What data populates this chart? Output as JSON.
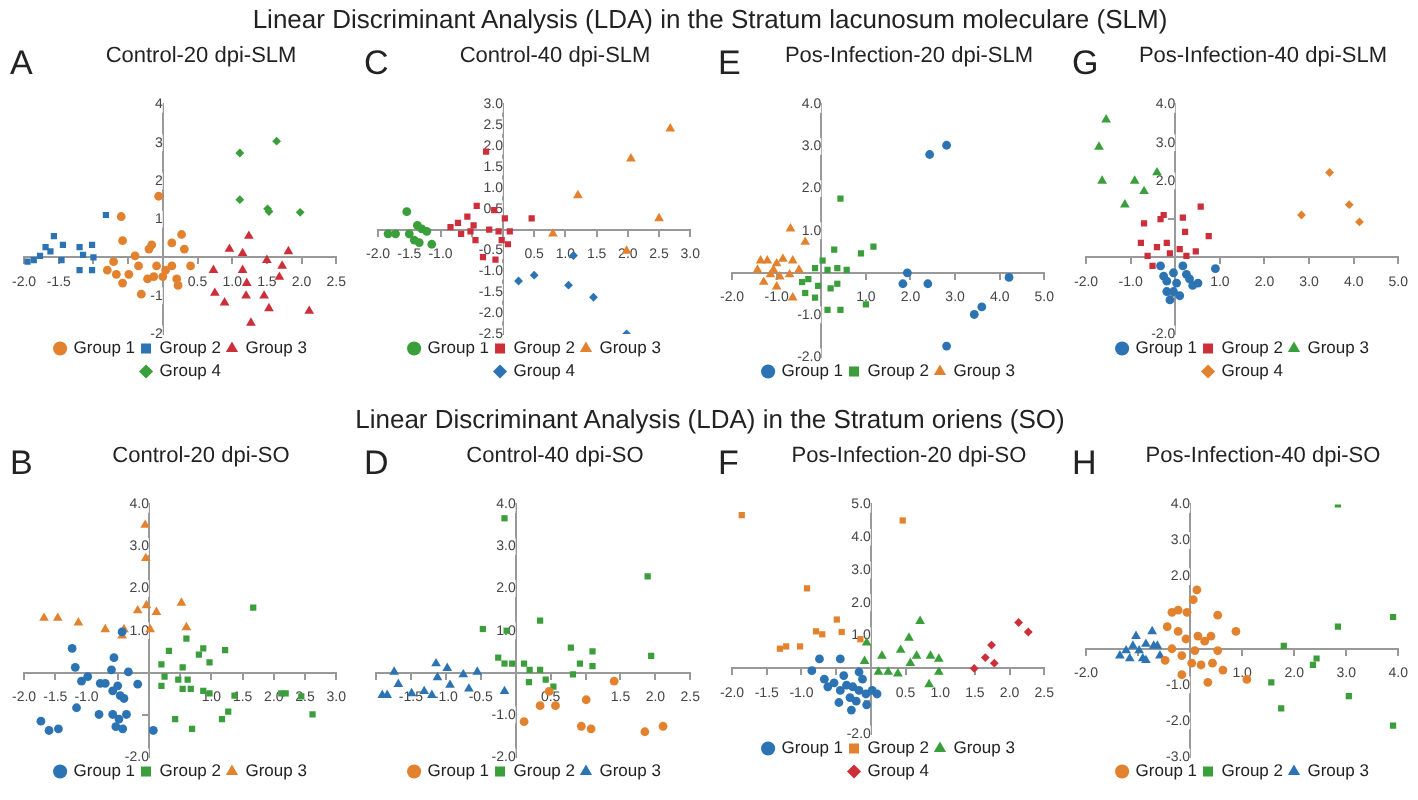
{
  "chart_data": [
    {
      "type": "scatter",
      "title": "Control-20 dpi-SLM",
      "annotations": [
        "Linear Discriminant Analysis (LDA) in the Stratum lacunosum moleculare (SLM)",
        "A"
      ],
      "legend": "bottom",
      "xlim": [
        -2,
        2.5
      ],
      "ylim": [
        -2,
        4
      ],
      "xticks": [
        {
          "value": -2,
          "label": "-2.0"
        },
        -1.5,
        {
          "value": -1,
          "label": null
        },
        {
          "value": -0.5,
          "label": null
        },
        0.5,
        {
          "value": 1,
          "label": "1.0"
        },
        1.5,
        {
          "value": 2,
          "label": "2.0"
        },
        2.5
      ],
      "yticks": [
        -2,
        -1,
        1,
        2,
        3,
        4
      ],
      "series": [
        {
          "name": "Group 1",
          "color": "#e2822f",
          "marker": "circle",
          "x": [
            -0.06,
            -0.6,
            -0.58,
            -0.16,
            -0.2,
            -0.4,
            0.27,
            0.13,
            0.31,
            0.4,
            -0.71,
            -0.8,
            -0.67,
            -0.58,
            -0.31,
            -0.22,
            -0.09,
            0.04,
            0.2,
            0.22,
            0.13,
            -0.35,
            -0.49,
            0.0,
            -0.13
          ],
          "values": [
            1.6,
            1.07,
            0.44,
            0.33,
            0.22,
            0.04,
            0.6,
            0.38,
            0.22,
            -0.22,
            -0.11,
            -0.33,
            -0.44,
            -0.67,
            -0.96,
            -0.56,
            -0.22,
            -0.33,
            -0.56,
            -0.73,
            -0.22,
            -0.22,
            -0.44,
            -0.5,
            -0.5
          ]
        },
        {
          "name": "Group 2",
          "color": "#2b73b3",
          "marker": "square",
          "x": [
            -0.82,
            -1.86,
            -1.77,
            -1.69,
            -1.57,
            -1.44,
            -1.2,
            -1.15,
            -1.02,
            -1.0,
            -1.02,
            -1.2,
            -1.46,
            -1.62,
            -1.95
          ],
          "values": [
            1.11,
            -0.07,
            0.04,
            0.27,
            0.56,
            0.33,
            0.27,
            0.07,
            0.33,
            0,
            -0.33,
            -0.33,
            -0.07,
            0.16,
            -0.11
          ]
        },
        {
          "name": "Group 3",
          "color": "#cc2f3a",
          "marker": "triangle",
          "x": [
            0.96,
            1.24,
            1.5,
            1.81,
            1.72,
            1.68,
            1.15,
            0.73,
            0.75,
            0.89,
            1.2,
            1.21,
            1.27,
            1.46,
            1.53,
            2.11,
            1.15
          ],
          "values": [
            0.22,
            0.56,
            -0.07,
            0.16,
            -0.22,
            -0.51,
            -0.33,
            -0.33,
            -0.93,
            -1.18,
            -1.0,
            -0.67,
            -1.71,
            -1.0,
            -1.33,
            -1.4,
            0.11
          ]
        },
        {
          "name": "Group 4",
          "color": "#3a9e3a",
          "marker": "diamond",
          "x": [
            1.11,
            1.64,
            1.11,
            1.51,
            1.53,
            1.98
          ],
          "values": [
            2.73,
            3.04,
            1.51,
            1.27,
            1.2,
            1.18
          ]
        }
      ]
    },
    {
      "type": "scatter",
      "title": "Control-40 dpi-SLM",
      "annotations": [
        "C"
      ],
      "legend": "bottom",
      "xlim": [
        -2,
        3
      ],
      "ylim": [
        -2.5,
        3
      ],
      "xticks": [
        {
          "value": -2,
          "label": "-2.0"
        },
        -1.5,
        {
          "value": -1,
          "label": "-1.0"
        },
        {
          "value": -0.5,
          "label": null
        },
        0.5,
        {
          "value": 1,
          "label": "1.0"
        },
        1.5,
        {
          "value": 2,
          "label": "2.0"
        },
        2.5,
        {
          "value": 3,
          "label": "3.0"
        }
      ],
      "yticks": [
        -2.5,
        {
          "value": -2,
          "label": "-2.0"
        },
        -1.5,
        {
          "value": -1,
          "label": "-1.0"
        },
        -0.5,
        0.5,
        {
          "value": 1,
          "label": "1.0"
        },
        1.5,
        {
          "value": 2,
          "label": "2.0"
        },
        2.5,
        {
          "value": 3,
          "label": "3.0"
        }
      ],
      "series": [
        {
          "name": "Group 1",
          "color": "#3a9e3a",
          "marker": "circle",
          "x": [
            -1.84,
            -1.72,
            -1.54,
            -1.5,
            -1.37,
            -1.3,
            -1.22,
            -1.34,
            -1.14,
            -1.42
          ],
          "values": [
            -0.1,
            -0.1,
            0.43,
            -0.1,
            0.1,
            0.02,
            -0.04,
            -0.31,
            -0.35,
            -0.25
          ]
        },
        {
          "name": "Group 2",
          "color": "#cc2f3a",
          "marker": "square",
          "x": [
            -0.27,
            -0.14,
            -0.42,
            -0.57,
            -0.72,
            -0.84,
            -0.67,
            -0.52,
            -0.44,
            -0.22,
            -0.07,
            -0.02,
            0.08,
            0.11,
            0.03,
            0.46,
            -0.32,
            -0.12,
            -0.47
          ],
          "values": [
            1.87,
            0.47,
            0.57,
            0.31,
            0.16,
            0.06,
            -0.1,
            -0.04,
            -0.25,
            0,
            -0.04,
            -0.25,
            -0.35,
            -0.04,
            0.27,
            0.27,
            -0.66,
            -0.72,
            0.1
          ]
        },
        {
          "name": "Group 3",
          "color": "#e2822f",
          "marker": "triangle",
          "x": [
            2.68,
            2.05,
            1.2,
            2.5,
            0.8,
            1.98
          ],
          "values": [
            2.42,
            1.7,
            0.82,
            0.27,
            -0.1,
            -0.51
          ]
        },
        {
          "name": "Group 4",
          "color": "#2b73b3",
          "marker": "diamond",
          "x": [
            0.25,
            0.5,
            1.13,
            1.05,
            1.45,
            1.98
          ],
          "values": [
            -1.23,
            -1.09,
            -0.62,
            -1.33,
            -1.62,
            -2.5
          ]
        }
      ]
    },
    {
      "type": "scatter",
      "title": "Pos-Infection-20 dpi-SLM",
      "annotations": [
        "E"
      ],
      "legend": "bottom",
      "xlim": [
        -2,
        5
      ],
      "ylim": [
        -2,
        4
      ],
      "xticks": [
        {
          "value": -2,
          "label": "-2.0"
        },
        {
          "value": -1,
          "label": "-1.0"
        },
        {
          "value": 1,
          "label": "1.0"
        },
        {
          "value": 2,
          "label": "2.0"
        },
        {
          "value": 3,
          "label": "3.0"
        },
        {
          "value": 4,
          "label": "4.0"
        },
        {
          "value": 5,
          "label": "5.0"
        }
      ],
      "yticks": [
        {
          "value": -2,
          "label": "-2.0"
        },
        {
          "value": -1,
          "label": "-1.0"
        },
        {
          "value": 1,
          "label": "1.0"
        },
        {
          "value": 2,
          "label": "2.0"
        },
        {
          "value": 3,
          "label": "3.0"
        },
        {
          "value": 4,
          "label": "4.0"
        }
      ],
      "series": [
        {
          "name": "Group 1",
          "color": "#2b73b3",
          "marker": "circle",
          "x": [
            2.43,
            2.81,
            1.93,
            1.83,
            2.39,
            4.21,
            3.6,
            3.43,
            2.81
          ],
          "values": [
            2.81,
            3.03,
            0,
            -0.26,
            -0.26,
            -0.11,
            -0.81,
            -0.99,
            -1.74
          ]
        },
        {
          "name": "Group 2",
          "color": "#3a9e3a",
          "marker": "square",
          "x": [
            0.43,
            1.17,
            0.89,
            0.29,
            0.03,
            -0.14,
            -0.29,
            0.14,
            0.36,
            0.57,
            -0.36,
            -0.14,
            0.14,
            0.43,
            1.0,
            0.21,
            -0.07,
            -0.43,
            0.36
          ],
          "values": [
            1.76,
            0.62,
            0.46,
            0.55,
            0.29,
            0.11,
            -0.15,
            0.07,
            0.11,
            0.07,
            -0.48,
            -0.59,
            -0.88,
            -0.88,
            -0.75,
            -0.37,
            -0.31,
            -0.22,
            -0.26
          ]
        },
        {
          "name": "Group 3",
          "color": "#e2822f",
          "marker": "triangle",
          "x": [
            -0.69,
            -0.36,
            -1.36,
            -1.21,
            -1.0,
            -0.86,
            -0.64,
            -1.43,
            -1.14,
            -0.93,
            -0.71,
            -1.29,
            -1.0,
            -0.64,
            -0.5,
            -1.07
          ],
          "values": [
            1.05,
            0.73,
            0.29,
            0.29,
            0.22,
            0.33,
            0.29,
            0.07,
            -0.04,
            -0.09,
            -0.04,
            -0.22,
            -0.33,
            -0.59,
            0.07,
            0.07
          ]
        }
      ]
    },
    {
      "type": "scatter",
      "title": "Pos-Infection-40 dpi-SLM",
      "annotations": [
        "G"
      ],
      "legend": "bottom",
      "xlim": [
        -2,
        5
      ],
      "ylim": [
        -2,
        4
      ],
      "xticks": [
        {
          "value": -2,
          "label": "-2.0"
        },
        {
          "value": -1,
          "label": "-1.0"
        },
        {
          "value": 1,
          "label": "1.0"
        },
        {
          "value": 2,
          "label": "2.0"
        },
        {
          "value": 3,
          "label": "3.0"
        },
        {
          "value": 4,
          "label": "4.0"
        },
        {
          "value": 5,
          "label": "5.0"
        }
      ],
      "yticks": [
        {
          "value": -2,
          "label": "-2.0"
        },
        {
          "value": -1,
          "label": null
        },
        {
          "value": 1,
          "label": null
        },
        {
          "value": 2,
          "label": "2.0"
        },
        {
          "value": 3,
          "label": "3.0"
        },
        {
          "value": 4,
          "label": "4.0"
        }
      ],
      "series": [
        {
          "name": "Group 1",
          "color": "#2b73b3",
          "marker": "circle",
          "x": [
            0.9,
            0.39,
            0.25,
            -0.04,
            -0.26,
            -0.19,
            -0.12,
            0.1,
            0.03,
            0.17,
            -0.33,
            0.32,
            0.51,
            -0.04,
            -0.19
          ],
          "values": [
            -0.29,
            -0.73,
            -0.44,
            -0.4,
            -0.49,
            -0.89,
            -1.11,
            -1.0,
            -0.67,
            -0.22,
            -0.22,
            -0.56,
            -0.67,
            -0.89,
            -0.62
          ]
        },
        {
          "name": "Group 2",
          "color": "#cc2f3a",
          "marker": "square",
          "x": [
            0.57,
            -0.26,
            -0.33,
            -0.7,
            0.75,
            0.17,
            0.22,
            -0.19,
            -0.41,
            -0.77,
            -0.62,
            -0.51,
            -0.12,
            0.1,
            0.25,
            0.46
          ],
          "values": [
            1.33,
            1.11,
            1.0,
            0.89,
            0.56,
            1.04,
            0.67,
            0.38,
            0.27,
            0.38,
            0.04,
            -0.22,
            0.11,
            0.22,
            0.04,
            0.16
          ]
        },
        {
          "name": "Group 3",
          "color": "#3a9e3a",
          "marker": "triangle",
          "x": [
            -1.55,
            -1.71,
            -1.64,
            -0.91,
            -0.41,
            -0.7,
            -1.13
          ],
          "values": [
            3.6,
            2.89,
            2.0,
            2.0,
            2.22,
            1.73,
            1.38
          ]
        },
        {
          "name": "Group 4",
          "color": "#e2822f",
          "marker": "diamond",
          "x": [
            3.46,
            2.83,
            3.9,
            4.13
          ],
          "values": [
            2.22,
            1.11,
            1.38,
            0.93
          ]
        }
      ]
    },
    {
      "type": "scatter",
      "title": "Control-20 dpi-SO",
      "annotations": [
        "Linear Discriminant Analysis (LDA) in the Stratum oriens (SO)",
        "B"
      ],
      "legend": "bottom",
      "xlim": [
        -2,
        3
      ],
      "ylim": [
        -2,
        4
      ],
      "xticks": [
        {
          "value": -2,
          "label": "-2.0"
        },
        -1.5,
        {
          "value": -1,
          "label": "-1.0"
        },
        {
          "value": -0.5,
          "label": null
        },
        {
          "value": 0.5,
          "label": null
        },
        {
          "value": 1,
          "label": "1.0"
        },
        1.5,
        {
          "value": 2,
          "label": "2.0"
        },
        2.5,
        {
          "value": 3,
          "label": "3.0"
        }
      ],
      "yticks": [
        {
          "value": -2,
          "label": "-2.0"
        },
        {
          "value": -1,
          "label": null
        },
        {
          "value": 1,
          "label": "1.0"
        },
        {
          "value": 2,
          "label": "2.0"
        },
        {
          "value": 3,
          "label": "3.0"
        },
        {
          "value": 4,
          "label": "4.0"
        }
      ],
      "series": [
        {
          "name": "Group 1",
          "color": "#2b73b3",
          "marker": "circle",
          "x": [
            -1.23,
            -1.18,
            -1.08,
            -0.98,
            -1.16,
            -1.73,
            -1.6,
            -1.45,
            -0.8,
            -0.78,
            -0.7,
            -0.6,
            -0.56,
            -0.5,
            -0.58,
            -0.46,
            -0.58,
            -0.48,
            -0.42,
            -0.36,
            -0.33,
            -0.18,
            -0.43,
            -0.4,
            0.07,
            -0.53
          ],
          "values": [
            0.58,
            0.13,
            -0.2,
            -0.09,
            -0.83,
            -1.15,
            -1.37,
            -1.33,
            -0.99,
            -0.25,
            -0.25,
            0.07,
            0.36,
            -0.31,
            -0.43,
            -0.54,
            -0.99,
            -1.1,
            -1.33,
            -0.99,
            0.02,
            -0.27,
            0.97,
            -0.61,
            -1.37,
            -1.28
          ]
        },
        {
          "name": "Group 2",
          "color": "#3a9e3a",
          "marker": "square",
          "x": [
            0.2,
            0.25,
            0.2,
            0.32,
            0.54,
            0.6,
            0.42,
            0.69,
            0.47,
            0.62,
            0.67,
            0.8,
            0.87,
            0.97,
            0.87,
            0.97,
            1.22,
            1.17,
            1.27,
            1.37,
            1.67,
            2.12,
            2.19,
            2.44,
            2.62,
            0.54
          ],
          "values": [
            0.2,
            -0.09,
            -0.31,
            0.52,
            -0.38,
            0.81,
            -1.1,
            -1.33,
            -0.16,
            -0.16,
            -0.38,
            0.43,
            0.58,
            0.25,
            -0.43,
            -0.49,
            0.54,
            -1.1,
            -0.92,
            -0.54,
            1.55,
            -0.49,
            -0.49,
            -0.56,
            -0.99,
            0.13
          ]
        },
        {
          "name": "Group 3",
          "color": "#e2822f",
          "marker": "triangle",
          "x": [
            -0.06,
            -0.05,
            -0.04,
            -0.18,
            0.12,
            0.52,
            0.6,
            0.02,
            -1.68,
            -1.46,
            -1.13,
            -0.7,
            -0.4,
            -0.43
          ],
          "values": [
            3.51,
            2.72,
            1.6,
            1.48,
            1.44,
            1.66,
            1.08,
            1.03,
            1.3,
            1.3,
            1.19,
            1.03,
            1.03,
            0.88
          ]
        }
      ]
    },
    {
      "type": "scatter",
      "title": "Control-40 dpi-SO",
      "annotations": [
        "D"
      ],
      "legend": "bottom",
      "xlim": [
        -2,
        2.5
      ],
      "ylim": [
        -2,
        4
      ],
      "xticks": [
        {
          "value": -2,
          "label": null
        },
        -1.5,
        {
          "value": -1,
          "label": "-1.0"
        },
        -0.5,
        0.5,
        {
          "value": 1,
          "label": null
        },
        1.5,
        {
          "value": 2,
          "label": "2.0"
        },
        2.5
      ],
      "yticks": [
        {
          "value": -2,
          "label": "-2.0"
        },
        {
          "value": -1,
          "label": "-1.0"
        },
        {
          "value": 1,
          "label": "1.0"
        },
        {
          "value": 2,
          "label": "2.0"
        },
        {
          "value": 3,
          "label": "3.0"
        },
        {
          "value": 4,
          "label": "4.0"
        }
      ],
      "series": [
        {
          "name": "Group 1",
          "color": "#e2822f",
          "marker": "circle",
          "x": [
            0.48,
            0.35,
            0.57,
            0.12,
            1.01,
            0.94,
            1.08,
            1.41,
            1.85,
            2.11
          ],
          "values": [
            -0.44,
            -0.78,
            -0.78,
            -1.16,
            -0.64,
            -1.27,
            -1.33,
            -0.2,
            -1.4,
            -1.27
          ]
        },
        {
          "name": "Group 2",
          "color": "#3a9e3a",
          "marker": "square",
          "x": [
            -0.16,
            -0.13,
            -0.47,
            0.35,
            -0.25,
            -0.16,
            -0.05,
            0.12,
            0.19,
            0.35,
            0.43,
            0.79,
            0.92,
            1.1,
            0.82,
            1.1,
            1.89,
            1.94,
            0.54,
            0.2
          ],
          "values": [
            3.67,
            1.0,
            1.04,
            1.24,
            0.36,
            0.22,
            0.22,
            0.22,
            -0.22,
            0.07,
            -0.16,
            0.6,
            0.22,
            0.51,
            -0.04,
            0.16,
            2.29,
            0.4,
            -0.33,
            0.07
          ]
        },
        {
          "name": "Group 3",
          "color": "#2b73b3",
          "marker": "triangle",
          "x": [
            -1.91,
            -1.84,
            -1.74,
            -1.68,
            -1.49,
            -1.31,
            -1.2,
            -1.14,
            -1.12,
            -0.98,
            -0.94,
            -0.75,
            -0.67,
            -0.55,
            -0.16
          ],
          "values": [
            -0.53,
            -0.53,
            0.02,
            -0.27,
            -0.49,
            -0.44,
            -0.53,
            0.22,
            -0.11,
            0.11,
            -0.29,
            -0.04,
            -0.38,
            0.02,
            -0.44
          ]
        }
      ]
    },
    {
      "type": "scatter",
      "title": "Pos-Infection-20 dpi-SO",
      "annotations": [
        "F"
      ],
      "legend": "bottom",
      "xlim": [
        -2,
        2.5
      ],
      "ylim": [
        -2,
        5
      ],
      "xticks": [
        {
          "value": -2,
          "label": "-2.0"
        },
        -1.5,
        {
          "value": -1,
          "label": "-1.0"
        },
        {
          "value": -0.5,
          "label": null
        },
        0.5,
        {
          "value": 1,
          "label": "1.0"
        },
        1.5,
        {
          "value": 2,
          "label": "2.0"
        },
        2.5
      ],
      "yticks": [
        {
          "value": -2,
          "label": "-2.0"
        },
        {
          "value": -1,
          "label": null
        },
        {
          "value": 1,
          "label": "1.0"
        },
        {
          "value": 2,
          "label": "2.0"
        },
        {
          "value": 3,
          "label": "3.0"
        },
        {
          "value": 4,
          "label": "4.0"
        },
        {
          "value": 5,
          "label": "5.0"
        }
      ],
      "series": [
        {
          "name": "Group 1",
          "color": "#2b73b3",
          "marker": "circle",
          "x": [
            -0.74,
            -0.85,
            -0.44,
            -0.67,
            -0.62,
            -0.53,
            -0.39,
            -0.44,
            -0.46,
            -0.3,
            -0.28,
            -0.21,
            -0.17,
            -0.07,
            0.02,
            0.09,
            -0.12,
            -0.17,
            -0.06,
            -0.26,
            -0.35
          ],
          "values": [
            0.29,
            -0.07,
            0.29,
            -0.33,
            -0.56,
            -0.44,
            -0.22,
            -0.67,
            -1.04,
            -0.89,
            -1.27,
            -1.0,
            -0.67,
            -0.78,
            -0.67,
            -0.78,
            -0.33,
            -0.11,
            -1.11,
            -0.56,
            -0.51
          ]
        },
        {
          "name": "Group 2",
          "color": "#e2822f",
          "marker": "square",
          "x": [
            -1.86,
            0.46,
            -0.92,
            -0.49,
            -0.79,
            -0.7,
            -0.42,
            -0.15,
            -1.02,
            -1.22,
            -1.31
          ],
          "values": [
            4.67,
            4.51,
            2.44,
            1.49,
            1.13,
            1.04,
            1.11,
            0.89,
            0.67,
            0.67,
            0.6
          ]
        },
        {
          "name": "Group 3",
          "color": "#3a9e3a",
          "marker": "triangle",
          "x": [
            0.71,
            0.55,
            -0.06,
            -0.09,
            0.16,
            0.43,
            0.66,
            0.86,
            0.98,
            0.25,
            0.39,
            0.57,
            0.98,
            0.84,
            0.11
          ],
          "values": [
            1.44,
            0.93,
            0.78,
            0.22,
            0.38,
            0.56,
            0.38,
            0.38,
            0.29,
            -0.11,
            -0.16,
            0.16,
            -0.11,
            -0.49,
            -0.11
          ]
        },
        {
          "name": "Group 4",
          "color": "#cc2f3a",
          "marker": "diamond",
          "x": [
            2.13,
            2.27,
            1.74,
            1.65,
            1.78,
            1.49
          ],
          "values": [
            1.4,
            1.11,
            0.71,
            0.33,
            0.16,
            0
          ]
        }
      ]
    },
    {
      "type": "scatter",
      "title": "Pos-Infection-40 dpi-SO",
      "annotations": [
        "H"
      ],
      "legend": "bottom",
      "xlim": [
        -2,
        4
      ],
      "ylim": [
        -3,
        4
      ],
      "xticks": [
        {
          "value": -2,
          "label": "-2.0"
        },
        {
          "value": -1,
          "label": null
        },
        {
          "value": 1,
          "label": "1.0"
        },
        {
          "value": 2,
          "label": "2.0"
        },
        {
          "value": 3,
          "label": "3.0"
        },
        {
          "value": 4,
          "label": "4.0"
        }
      ],
      "yticks": [
        {
          "value": -3,
          "label": "-3.0"
        },
        {
          "value": -2,
          "label": "-2.0"
        },
        {
          "value": -1,
          "label": "-1.0"
        },
        {
          "value": 1,
          "label": null
        },
        {
          "value": 2,
          "label": "2.0"
        },
        {
          "value": 3,
          "label": "3.0"
        },
        {
          "value": 4,
          "label": "4.0"
        }
      ],
      "series": [
        {
          "name": "Group 1",
          "color": "#e2822f",
          "marker": "circle",
          "x": [
            0.13,
            0.06,
            -0.23,
            -0.35,
            -0.06,
            0.53,
            0.88,
            -0.44,
            -0.23,
            -0.08,
            0.15,
            0.28,
            0.4,
            -0.35,
            -0.16,
            0.03,
            0.21,
            0.43,
            0.63,
            0.34,
            1.09,
            -0.16,
            -0.48,
            0.53,
            0.09
          ],
          "values": [
            1.63,
            1.36,
            1.07,
            1.01,
            1.01,
            0.93,
            0.48,
            0.61,
            0.48,
            0.27,
            0.35,
            0.21,
            0.35,
            0,
            -0.19,
            -0.4,
            -0.45,
            -0.4,
            -0.59,
            -0.93,
            -0.85,
            -0.72,
            -0.32,
            -0.05,
            -0.05
          ]
        },
        {
          "name": "Group 2",
          "color": "#3a9e3a",
          "marker": "square",
          "x": [
            2.84,
            2.84,
            3.9,
            1.8,
            2.43,
            2.36,
            3.05,
            1.56,
            1.75,
            3.9
          ],
          "values": [
            4.0,
            0.61,
            0.88,
            0.08,
            -0.27,
            -0.45,
            -1.31,
            -0.93,
            -1.65,
            -2.13
          ]
        },
        {
          "name": "Group 3",
          "color": "#2b73b3",
          "marker": "triangle",
          "x": [
            -1.35,
            -1.23,
            -1.1,
            -0.98,
            -0.85,
            -0.73,
            -0.7,
            -0.58,
            -0.91,
            -1.16,
            -0.85,
            -0.63,
            -1.04
          ],
          "values": [
            -0.19,
            -0.05,
            0.08,
            -0.05,
            0.13,
            0.48,
            0.08,
            -0.19,
            -0.27,
            -0.27,
            -0.32,
            0.08,
            0.35
          ]
        }
      ]
    }
  ]
}
